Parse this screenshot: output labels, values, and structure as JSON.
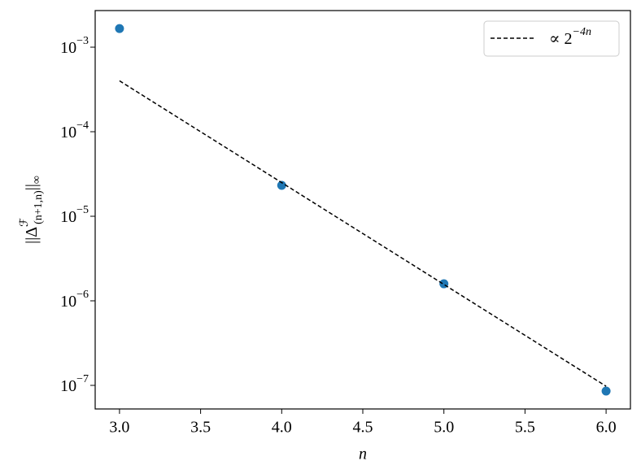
{
  "chart_data": {
    "type": "scatter",
    "xlabel": "n",
    "ylabel": {
      "base": "||Δ",
      "sup": "ℱ",
      "sub": "(n+1,n)",
      "tail": "||",
      "tail_sub": "∞"
    },
    "x": [
      3,
      4,
      5,
      6
    ],
    "series": [
      {
        "name": "data",
        "kind": "scatter",
        "color": "#1f77b4",
        "values": [
          0.00166,
          2.32e-05,
          1.59e-06,
          8.57e-08
        ],
        "in_legend": false
      },
      {
        "name": "∝ 2",
        "name_exponent": "−4n",
        "kind": "line",
        "dash": true,
        "color": "#000000",
        "values": [
          0.0004,
          2.5e-05,
          1.5625e-06,
          9.765625e-08
        ],
        "in_legend": true
      }
    ],
    "xlim": [
      2.85,
      6.15
    ],
    "ylim": [
      5.26e-08,
      0.00271
    ],
    "ylog": true,
    "xticks": [
      {
        "value": 3,
        "label": "3.0"
      },
      {
        "value": 3.5,
        "label": "3.5"
      },
      {
        "value": 4,
        "label": "4.0"
      },
      {
        "value": 4.5,
        "label": "4.5"
      },
      {
        "value": 5,
        "label": "5.0"
      },
      {
        "value": 5.5,
        "label": "5.5"
      },
      {
        "value": 6,
        "label": "6.0"
      }
    ],
    "yticks": [
      {
        "value": 0.001,
        "label": "10",
        "exponent": "−3"
      },
      {
        "value": 0.0001,
        "label": "10",
        "exponent": "−4"
      },
      {
        "value": 1e-05,
        "label": "10",
        "exponent": "−5"
      },
      {
        "value": 1e-06,
        "label": "10",
        "exponent": "−6"
      },
      {
        "value": 1e-07,
        "label": "10",
        "exponent": "−7"
      }
    ],
    "grid": false,
    "legend": "upper right"
  }
}
